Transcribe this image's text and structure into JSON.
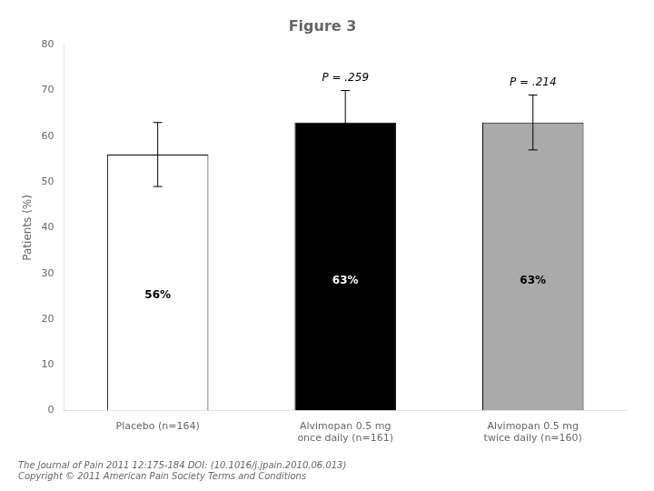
{
  "chart_data": {
    "type": "bar",
    "title": "Figure 3",
    "categories": [
      "Placebo (n=164)",
      "Alvimopan 0.5 mg\nonce daily (n=161)",
      "Alvimopan 0.5 mg\ntwice daily (n=160)"
    ],
    "values": [
      56,
      63,
      63
    ],
    "errors": [
      7,
      7,
      6
    ],
    "colors": [
      "#ffffff",
      "#000000",
      "#aaaaaa"
    ],
    "data_labels": true,
    "value_labels": [
      "56%",
      "63%",
      "63%"
    ],
    "annotations": [
      {
        "text": "P = .259",
        "category": "Alvimopan 0.5 mg\nonce daily (n=161)"
      },
      {
        "text": "P = .214",
        "category": "Alvimopan 0.5 mg\ntwice daily (n=160)"
      }
    ],
    "ylabel": "Patients (%)",
    "ylim": [
      0,
      80
    ],
    "yticks": [
      0,
      10,
      20,
      30,
      40,
      50,
      60,
      70,
      80
    ],
    "grid": false,
    "footer": [
      "The Journal of Pain 2011 12:175-184 DOI: (10.1016/j.jpain.2010.06.013)",
      "Copyright © 2011 American Pain Society Terms and Conditions"
    ]
  }
}
